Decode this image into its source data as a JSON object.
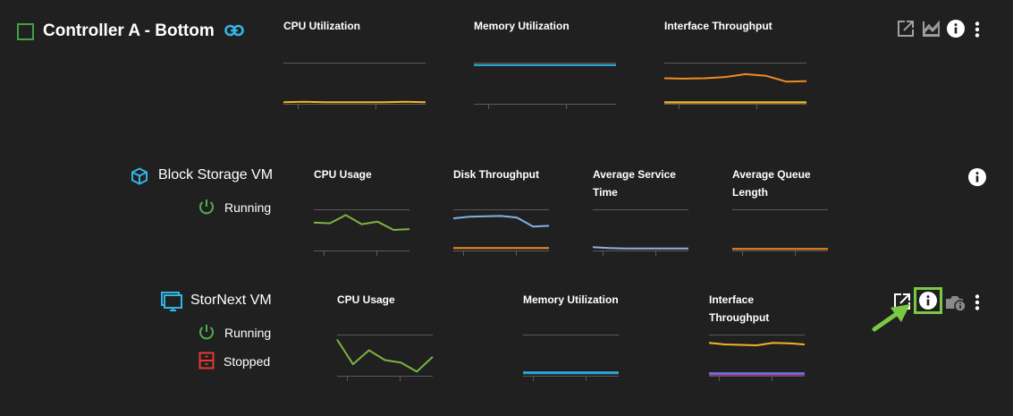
{
  "rows": [
    {
      "name": "Controller A - Bottom",
      "icon": "checkbox-square-icon",
      "link_icon": "link-icon",
      "charts": [
        {
          "title": "CPU Utilization",
          "series": [
            {
              "color": "#f5b324",
              "values": [
                4,
                5,
                4,
                4,
                4,
                4,
                5,
                4
              ]
            }
          ]
        },
        {
          "title": "Memory Utilization",
          "series": [
            {
              "color": "#33b5e5",
              "values": [
                94,
                94,
                94,
                94,
                94,
                94,
                94,
                94
              ]
            }
          ]
        },
        {
          "title": "Interface Throughput",
          "series": [
            {
              "color": "#f08a24",
              "values": [
                62,
                61,
                62,
                65,
                72,
                68,
                54,
                55
              ]
            },
            {
              "color": "#c8c832",
              "values": [
                4,
                4,
                4,
                4,
                4,
                4,
                4,
                4
              ]
            },
            {
              "color": "#f5b324",
              "values": [
                3,
                3,
                3,
                3,
                3,
                3,
                3,
                3
              ]
            }
          ]
        }
      ],
      "actions": [
        "open-in-new-icon",
        "area-chart-icon",
        "info-icon",
        "more-vert-icon"
      ]
    },
    {
      "name": "Block Storage VM",
      "icon": "cube-icon",
      "statuses": [
        {
          "label": "Running",
          "icon": "power-icon",
          "color": "#4caf50"
        }
      ],
      "charts": [
        {
          "title": "CPU Usage",
          "series": [
            {
              "color": "#7cb342",
              "values": [
                68,
                66,
                86,
                64,
                70,
                50,
                52
              ]
            }
          ]
        },
        {
          "title": "Disk Throughput",
          "series": [
            {
              "color": "#7fb3e8",
              "values": [
                78,
                82,
                83,
                84,
                80,
                58,
                60
              ]
            },
            {
              "color": "#f08a24",
              "values": [
                6,
                6,
                6,
                6,
                6,
                6,
                6
              ]
            }
          ]
        },
        {
          "title": "Average Service Time",
          "series": [
            {
              "color": "#8fb3e0",
              "values": [
                8,
                6,
                5,
                5,
                5,
                5,
                5
              ]
            }
          ]
        },
        {
          "title": "Average Queue Length",
          "series": [
            {
              "color": "#f08a24",
              "values": [
                4,
                4,
                4,
                4,
                4,
                4,
                4
              ]
            }
          ]
        }
      ],
      "actions": [
        "info-icon"
      ]
    },
    {
      "name": "StorNext VM",
      "icon": "monitor-icon",
      "statuses": [
        {
          "label": "Running",
          "icon": "power-icon",
          "color": "#4caf50"
        },
        {
          "label": "Stopped",
          "icon": "stopped-icon",
          "color": "#e53935"
        }
      ],
      "charts": [
        {
          "title": "CPU Usage",
          "series": [
            {
              "color": "#7cb342",
              "values": [
                88,
                28,
                62,
                38,
                32,
                10,
                46
              ]
            }
          ]
        },
        {
          "title": "Memory Utilization",
          "series": [
            {
              "color": "#33b5e5",
              "values": [
                8,
                8,
                8,
                8,
                8,
                8,
                8
              ]
            },
            {
              "color": "#29a3d6",
              "values": [
                6,
                6,
                6,
                6,
                6,
                6,
                6
              ]
            }
          ]
        },
        {
          "title": "Interface Throughput",
          "series": [
            {
              "color": "#f5b324",
              "values": [
                80,
                76,
                75,
                74,
                80,
                79,
                76
              ]
            },
            {
              "color": "#5b8def",
              "values": [
                6,
                6,
                6,
                6,
                6,
                6,
                6
              ]
            },
            {
              "color": "#ab47bc",
              "values": [
                3,
                3,
                3,
                3,
                3,
                3,
                3
              ]
            }
          ]
        }
      ],
      "actions": [
        "open-in-new-icon",
        "info-icon",
        "camera-info-icon",
        "more-vert-icon"
      ]
    }
  ],
  "annotation": {
    "highlight_color": "#7ac943",
    "arrow_color": "#7ac943"
  }
}
